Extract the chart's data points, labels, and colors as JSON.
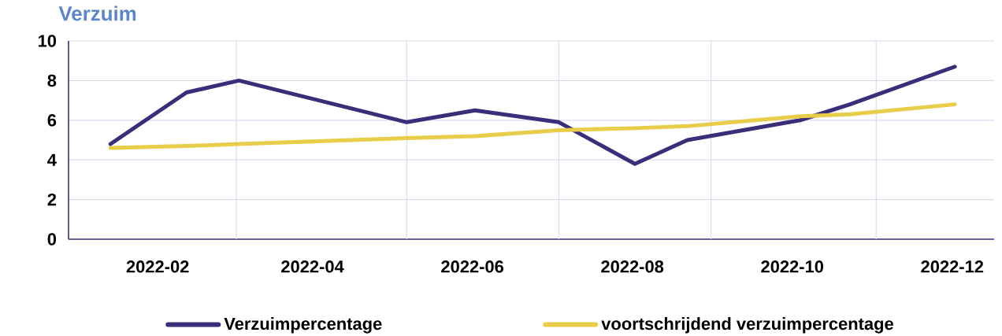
{
  "chart_data": {
    "type": "line",
    "title": "Verzuim",
    "x": [
      "2022-01-14",
      "2022-02-12",
      "2022-03-04",
      "2022-05-07",
      "2022-06-02",
      "2022-07-04",
      "2022-08-02",
      "2022-08-22",
      "2022-10-04",
      "2022-10-23",
      "2022-12-02"
    ],
    "series": [
      {
        "name": "Verzuimpercentage",
        "color": "#3b2d7a",
        "values": [
          4.8,
          7.4,
          8.0,
          5.9,
          6.5,
          5.9,
          3.8,
          5.0,
          6.0,
          6.8,
          8.7
        ]
      },
      {
        "name": "voortschrijdend verzuimpercentage",
        "color": "#e8cc4a",
        "values": [
          4.6,
          4.7,
          4.8,
          5.1,
          5.2,
          5.5,
          5.6,
          5.7,
          6.2,
          6.3,
          6.8
        ]
      }
    ],
    "xlim": [
      "2021-12-29",
      "2022-12-17"
    ],
    "xticks": [
      {
        "value": "2022-02-01",
        "label": "2022-02"
      },
      {
        "value": "2022-04-01",
        "label": "2022-04"
      },
      {
        "value": "2022-06-01",
        "label": "2022-06"
      },
      {
        "value": "2022-08-01",
        "label": "2022-08"
      },
      {
        "value": "2022-10-01",
        "label": "2022-10"
      },
      {
        "value": "2022-12-01",
        "label": "2022-12"
      },
      {
        "value": "2022-03-03",
        "label": null
      },
      {
        "value": "2022-05-07",
        "label": null
      },
      {
        "value": "2022-07-04",
        "label": null
      },
      {
        "value": "2022-08-31",
        "label": null
      },
      {
        "value": "2022-11-02",
        "label": null
      }
    ],
    "ylim": [
      0,
      10
    ],
    "yticks": [
      0,
      2,
      4,
      6,
      8,
      10
    ],
    "grid": true,
    "legend": "bottom",
    "marker": "none",
    "line_style": "solid"
  }
}
